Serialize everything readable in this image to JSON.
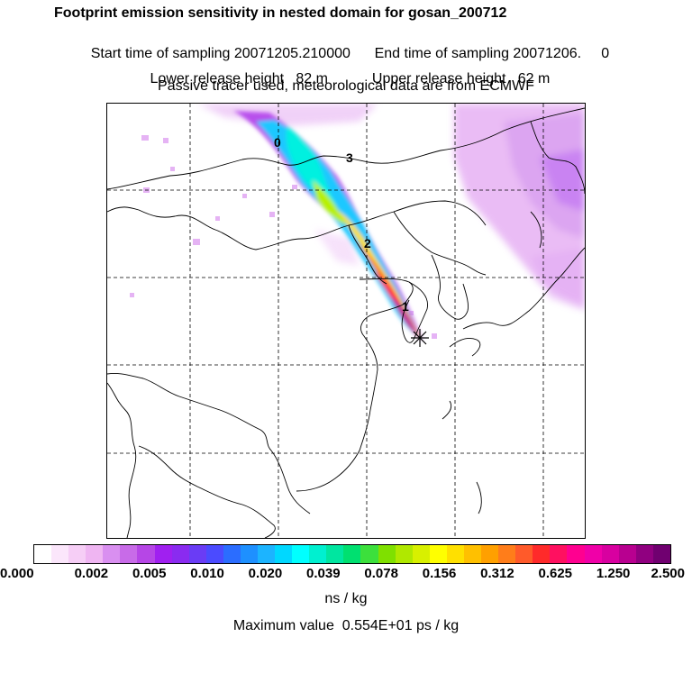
{
  "header": {
    "title": "Footprint emission sensitivity in nested domain for gosan_200712",
    "start_label": "Start time of sampling 20071205.210000",
    "end_label": "End time of sampling 20071206.     0",
    "lower_release": "Lower release height   82 m",
    "upper_release": "Upper release height   62 m",
    "tracer_note": "Passive tracer used, meteorological data are from ECMWF"
  },
  "map": {
    "trajectory_labels": [
      "0",
      "3",
      "2",
      "1"
    ],
    "receptor_marker": "star-icon"
  },
  "colorbar": {
    "colors": [
      "#ffffff",
      "#fbe6fb",
      "#f6cef6",
      "#efb5f2",
      "#d98ff0",
      "#c86be8",
      "#b646e6",
      "#a020f0",
      "#8a2bf0",
      "#6a3cf5",
      "#4b4bff",
      "#2b6dff",
      "#1e90ff",
      "#1cb4ff",
      "#00d8ff",
      "#00ffff",
      "#00f0d0",
      "#00e6a0",
      "#00e070",
      "#3ce03c",
      "#7fe000",
      "#b0e800",
      "#d8f000",
      "#ffff00",
      "#ffe000",
      "#ffc000",
      "#ffa000",
      "#ff7d1a",
      "#ff5a2a",
      "#ff2a2a",
      "#ff1060",
      "#ff0090",
      "#f000a8",
      "#d800a0",
      "#b80090",
      "#900080",
      "#700070"
    ],
    "tick_labels": [
      "0.000",
      "0.002",
      "0.005",
      "0.010",
      "0.020",
      "0.039",
      "0.078",
      "0.156",
      "0.312",
      "0.625",
      "1.250",
      "2.500"
    ],
    "unit": "ns / kg"
  },
  "footer": {
    "max_value": "Maximum value  0.554E+01 ps / kg"
  }
}
